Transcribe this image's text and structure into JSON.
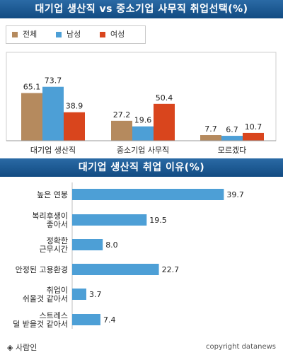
{
  "header1": {
    "title": "대기업 생산직 vs 중소기업 사무직 취업선택(%)"
  },
  "header2": {
    "title": "대기업 생산직 취업 이유(%)"
  },
  "legend": [
    {
      "label": "전체",
      "color": "#b58a5e"
    },
    {
      "label": "남성",
      "color": "#4d9fd6"
    },
    {
      "label": "여성",
      "color": "#d9451d"
    }
  ],
  "chart_data": [
    {
      "type": "bar",
      "categories": [
        "대기업 생산직",
        "중소기업 사무직",
        "모르겠다"
      ],
      "series": [
        {
          "name": "전체",
          "values": [
            65.1,
            27.2,
            7.7
          ],
          "color": "#b58a5e"
        },
        {
          "name": "남성",
          "values": [
            73.7,
            19.6,
            6.7
          ],
          "color": "#4d9fd6"
        },
        {
          "name": "여성",
          "values": [
            38.9,
            50.4,
            10.7
          ],
          "color": "#d9451d"
        }
      ],
      "ylim": [
        0,
        80
      ],
      "legend_position": "top-left",
      "grid": false
    },
    {
      "type": "bar",
      "orientation": "horizontal",
      "categories": [
        "높은 연봉",
        "복리후생이\n좋아서",
        "정확한\n근무시간",
        "안정된 고용환경",
        "취업이\n쉬울것 같아서",
        "스트레스\n덜 받을것 같아서"
      ],
      "values": [
        39.7,
        19.5,
        8.0,
        22.7,
        3.7,
        7.4
      ],
      "value_labels": [
        "39.7",
        "19.5",
        "8.0",
        "22.7",
        "3.7",
        "7.4"
      ],
      "color": "#4d9fd6",
      "xlim": [
        0,
        45
      ],
      "grid": false
    }
  ],
  "footer": {
    "logo_text": "◈ 사람인",
    "copyright": "copyright datanews"
  }
}
